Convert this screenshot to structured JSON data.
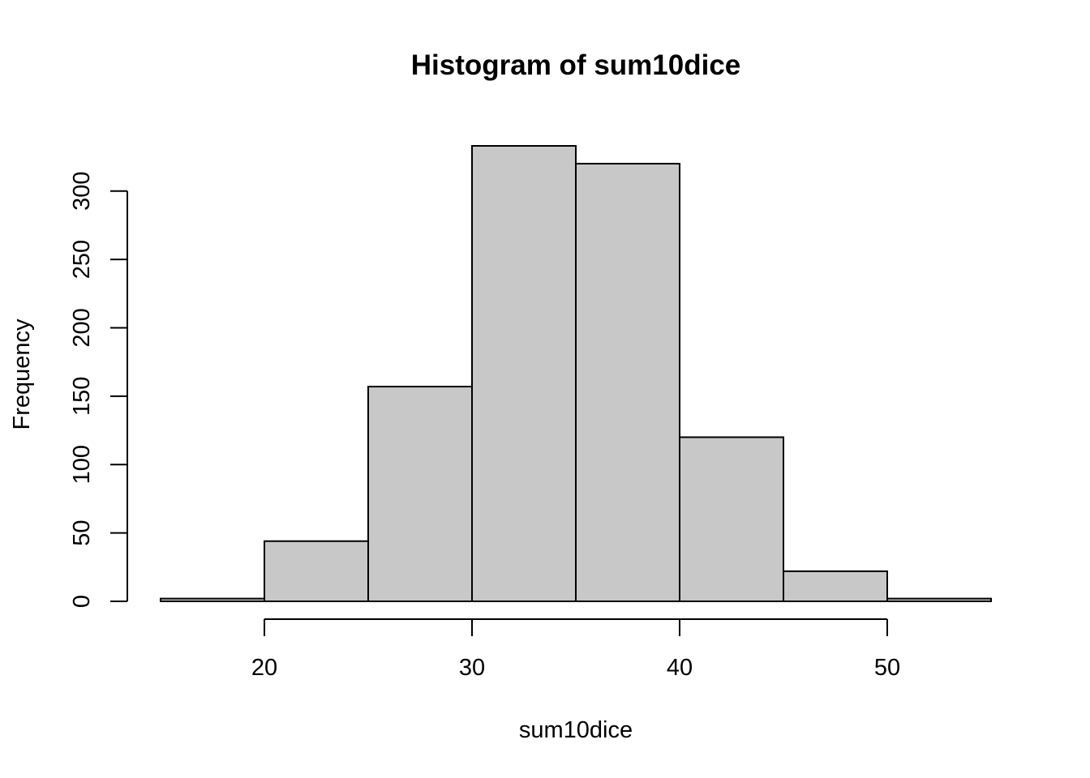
{
  "chart_data": {
    "type": "bar",
    "title": "Histogram of sum10dice",
    "xlabel": "sum10dice",
    "ylabel": "Frequency",
    "bins": [
      {
        "start": 15,
        "end": 20,
        "count": 2
      },
      {
        "start": 20,
        "end": 25,
        "count": 44
      },
      {
        "start": 25,
        "end": 30,
        "count": 157
      },
      {
        "start": 30,
        "end": 35,
        "count": 333
      },
      {
        "start": 35,
        "end": 40,
        "count": 320
      },
      {
        "start": 40,
        "end": 45,
        "count": 120
      },
      {
        "start": 45,
        "end": 50,
        "count": 22
      },
      {
        "start": 50,
        "end": 55,
        "count": 2
      }
    ],
    "xticks": [
      20,
      30,
      40,
      50
    ],
    "yticks": [
      0,
      50,
      100,
      150,
      200,
      250,
      300
    ],
    "xlim": [
      15,
      55
    ],
    "ylim": [
      0,
      333
    ],
    "grid": false,
    "legend": "none",
    "colors": {
      "bar_fill": "#c8c8c8",
      "bar_stroke": "#000000"
    }
  }
}
